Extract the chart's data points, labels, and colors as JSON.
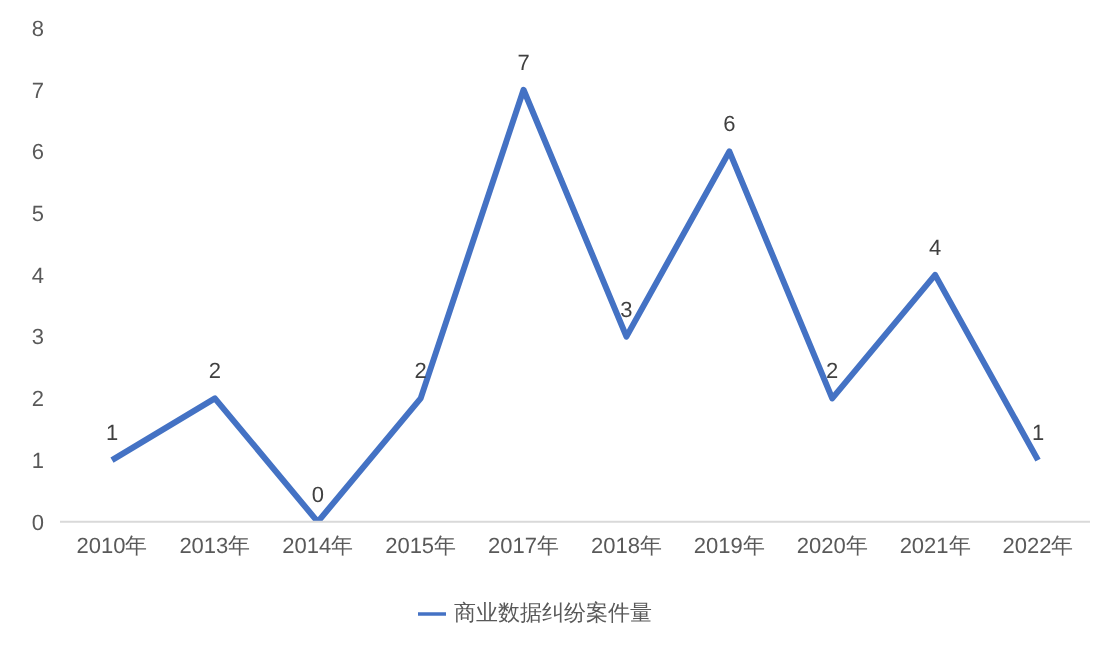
{
  "chart_data": {
    "type": "line",
    "categories": [
      "2010年",
      "2013年",
      "2014年",
      "2015年",
      "2017年",
      "2018年",
      "2019年",
      "2020年",
      "2021年",
      "2022年"
    ],
    "series": [
      {
        "name": "商业数据纠纷案件量",
        "color": "#4472c4",
        "values": [
          1,
          2,
          0,
          2,
          7,
          3,
          6,
          2,
          4,
          1
        ]
      }
    ],
    "ylim": [
      0,
      8
    ],
    "yticks": [
      0,
      1,
      2,
      3,
      4,
      5,
      6,
      7,
      8
    ],
    "grid": false,
    "legend": "bottom",
    "marker": "none",
    "line_style": "solid",
    "data_labels": true
  }
}
